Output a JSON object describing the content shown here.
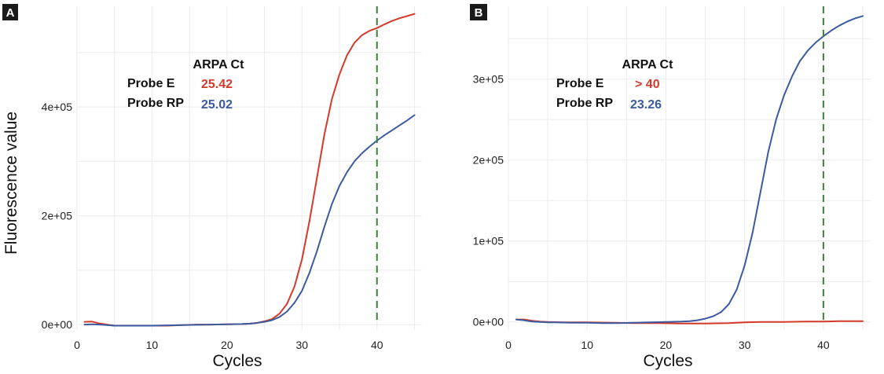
{
  "colors": {
    "probe_e": "#d43a2a",
    "probe_rp": "#3c5aa0",
    "threshold": "#3f7f3a",
    "grid": "#ebebeb",
    "label_bg": "#1a1a1a"
  },
  "chart_data": [
    {
      "type": "line",
      "panel_label": "A",
      "xlabel": "Cycles",
      "ylabel": "Fluorescence value",
      "xlim": [
        0,
        46
      ],
      "ylim": [
        -10000,
        585000
      ],
      "x_ticks": [
        0,
        10,
        20,
        30,
        40
      ],
      "x_tick_labels": [
        "0",
        "10",
        "20",
        "30",
        "40"
      ],
      "y_ticks": [
        0,
        200000,
        400000
      ],
      "y_tick_labels": [
        "0e+00",
        "2e+05",
        "4e+05"
      ],
      "threshold_x": 40,
      "annotation": {
        "title": "ARPA Ct",
        "rows": [
          {
            "probe": "Probe E",
            "value": "25.42",
            "color_key": "probe_e"
          },
          {
            "probe": "Probe RP",
            "value": "25.02",
            "color_key": "probe_rp"
          }
        ]
      },
      "series": [
        {
          "name": "Probe E",
          "color_key": "probe_e",
          "x": [
            1,
            2,
            3,
            4,
            5,
            6,
            8,
            10,
            12,
            14,
            16,
            18,
            20,
            22,
            23,
            24,
            25,
            26,
            27,
            28,
            29,
            30,
            31,
            32,
            33,
            34,
            35,
            36,
            37,
            38,
            39,
            40,
            41,
            42,
            43,
            44,
            45
          ],
          "y": [
            5000,
            5500,
            2000,
            0,
            -2000,
            -2000,
            -2000,
            -2000,
            -2000,
            -1000,
            0,
            0,
            500,
            1000,
            1500,
            3000,
            6000,
            10000,
            20000,
            38000,
            70000,
            120000,
            190000,
            270000,
            350000,
            415000,
            460000,
            495000,
            518000,
            532000,
            540000,
            545000,
            552000,
            558000,
            563000,
            567000,
            571000
          ]
        },
        {
          "name": "Probe RP",
          "color_key": "probe_rp",
          "x": [
            1,
            2,
            3,
            4,
            5,
            6,
            8,
            10,
            12,
            14,
            16,
            18,
            20,
            22,
            23,
            24,
            25,
            26,
            27,
            28,
            29,
            30,
            31,
            32,
            33,
            34,
            35,
            36,
            37,
            38,
            39,
            40,
            41,
            42,
            43,
            44,
            45
          ],
          "y": [
            0,
            500,
            0,
            -1000,
            -2000,
            -2000,
            -2000,
            -2000,
            -1500,
            -1000,
            -500,
            0,
            500,
            1000,
            1500,
            3000,
            5000,
            8000,
            14000,
            24000,
            40000,
            62000,
            95000,
            135000,
            180000,
            222000,
            255000,
            280000,
            300000,
            315000,
            327000,
            338000,
            348000,
            357000,
            366000,
            375000,
            385000
          ]
        }
      ]
    },
    {
      "type": "line",
      "panel_label": "B",
      "xlabel": "Cycles",
      "ylabel": "",
      "xlim": [
        0,
        46
      ],
      "ylim": [
        -10000,
        390000
      ],
      "x_ticks": [
        0,
        10,
        20,
        30,
        40
      ],
      "x_tick_labels": [
        "0",
        "10",
        "20",
        "30",
        "40"
      ],
      "y_ticks": [
        0,
        100000,
        200000,
        300000
      ],
      "y_tick_labels": [
        "0e+00",
        "1e+05",
        "2e+05",
        "3e+05"
      ],
      "threshold_x": 40,
      "annotation": {
        "title": "ARPA Ct",
        "rows": [
          {
            "probe": "Probe E",
            "value": "> 40",
            "color_key": "probe_e"
          },
          {
            "probe": "Probe RP",
            "value": "23.26",
            "color_key": "probe_rp"
          }
        ]
      },
      "series": [
        {
          "name": "Probe E",
          "color_key": "probe_e",
          "x": [
            1,
            2,
            3,
            4,
            5,
            7,
            10,
            13,
            16,
            19,
            22,
            25,
            28,
            30,
            32,
            35,
            38,
            40,
            42,
            45
          ],
          "y": [
            3000,
            3000,
            1500,
            500,
            0,
            -500,
            -500,
            -1000,
            -1500,
            -1500,
            -2000,
            -2000,
            -1500,
            -500,
            0,
            0,
            500,
            500,
            1000,
            1000
          ]
        },
        {
          "name": "Probe RP",
          "color_key": "probe_rp",
          "x": [
            1,
            2,
            3,
            4,
            5,
            6,
            8,
            10,
            12,
            14,
            16,
            18,
            20,
            22,
            23,
            24,
            25,
            26,
            27,
            28,
            29,
            30,
            31,
            32,
            33,
            34,
            35,
            36,
            37,
            38,
            39,
            40,
            41,
            42,
            43,
            44,
            45
          ],
          "y": [
            3000,
            2000,
            500,
            0,
            -500,
            -500,
            -1000,
            -1000,
            -1500,
            -1500,
            -1000,
            -500,
            0,
            500,
            1000,
            2000,
            4000,
            7000,
            12000,
            22000,
            40000,
            70000,
            110000,
            160000,
            210000,
            250000,
            280000,
            303000,
            322000,
            335000,
            345000,
            353000,
            360000,
            366000,
            371000,
            375000,
            378000
          ]
        }
      ]
    }
  ]
}
